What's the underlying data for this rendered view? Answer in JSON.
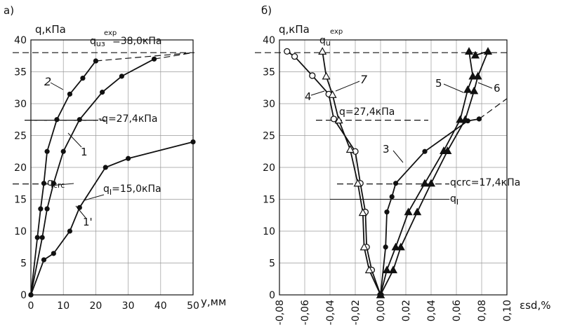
{
  "chart_data": [
    {
      "panel_label": "а)",
      "type": "line",
      "ylabel": "q,кПа",
      "xlabel": "y,мм",
      "xlim": [
        0,
        50
      ],
      "ylim": [
        0,
        40
      ],
      "xticks": [
        "0",
        "10",
        "20",
        "30",
        "40",
        "50"
      ],
      "yticks": [
        "0",
        "5",
        "10",
        "15",
        "20",
        "25",
        "30",
        "35",
        "40"
      ],
      "series": [
        {
          "name": "2",
          "points": [
            [
              0,
              0
            ],
            [
              2,
              9
            ],
            [
              3,
              13.5
            ],
            [
              4,
              17.5
            ],
            [
              5,
              22.5
            ],
            [
              8,
              27.5
            ],
            [
              12,
              31.5
            ],
            [
              16,
              34
            ],
            [
              20,
              36.7
            ]
          ],
          "tail": [
            [
              20,
              36.7
            ],
            [
              50,
              38
            ]
          ]
        },
        {
          "name": "1",
          "points": [
            [
              0,
              0
            ],
            [
              3.5,
              9
            ],
            [
              5,
              13.5
            ],
            [
              7,
              17.5
            ],
            [
              10,
              22.5
            ],
            [
              15,
              27.5
            ],
            [
              22,
              31.8
            ],
            [
              28,
              34.3
            ],
            [
              38,
              37
            ]
          ],
          "tail": [
            [
              38,
              37
            ],
            [
              50,
              38
            ]
          ]
        },
        {
          "name": "1'",
          "points": [
            [
              0,
              0
            ],
            [
              4,
              5.5
            ],
            [
              7,
              6.5
            ],
            [
              12,
              10
            ],
            [
              15,
              13.7
            ],
            [
              23,
              20
            ],
            [
              30,
              21.4
            ],
            [
              50,
              24
            ]
          ]
        }
      ],
      "levels": [
        {
          "value": 38.0,
          "label_main": "q",
          "label_sub": "uз",
          "label_sup": "exp",
          "label_rest": "=38,0кПа"
        },
        {
          "value": 27.4,
          "label_text": "-q=27,4кПа"
        },
        {
          "value": 17.4,
          "label_text": "q",
          "label_sub": "crc"
        },
        {
          "value": 15.0,
          "label_text": "q",
          "label_sub": "I",
          "label_rest": "=15,0кПа"
        }
      ]
    },
    {
      "panel_label": "б)",
      "type": "line",
      "ylabel": "q,кПа",
      "xlabel": "εsd,%",
      "xlim": [
        -0.08,
        0.1
      ],
      "ylim": [
        0,
        40
      ],
      "xticks": [
        "-0,08",
        "-0,06",
        "-0,04",
        "-0,02",
        "0,00",
        "0,02",
        "0,04",
        "0,06",
        "0,08",
        "0,10"
      ],
      "yticks": [
        "0",
        "5",
        "10",
        "15",
        "20",
        "25",
        "30",
        "35",
        "40"
      ],
      "series": [
        {
          "name": "4",
          "marker": "open-circle",
          "points": [
            [
              -0.074,
              38.2
            ],
            [
              -0.068,
              37.4
            ],
            [
              -0.054,
              34.4
            ],
            [
              -0.041,
              31.5
            ],
            [
              -0.037,
              27.6
            ],
            [
              -0.02,
              22.5
            ],
            [
              -0.016,
              17.5
            ],
            [
              -0.012,
              13
            ],
            [
              -0.011,
              7.5
            ],
            [
              -0.007,
              3.9
            ],
            [
              0,
              0
            ]
          ]
        },
        {
          "name": "7",
          "marker": "open-triangle",
          "points": [
            [
              -0.046,
              38.2
            ],
            [
              -0.043,
              34.3
            ],
            [
              -0.038,
              31.4
            ],
            [
              -0.033,
              27.4
            ],
            [
              -0.024,
              22.8
            ],
            [
              -0.018,
              17.5
            ],
            [
              -0.014,
              12.9
            ],
            [
              -0.013,
              7.5
            ],
            [
              -0.009,
              3.9
            ],
            [
              0,
              0
            ]
          ]
        },
        {
          "name": "3",
          "marker": "filled-circle",
          "points": [
            [
              0,
              0
            ],
            [
              0.004,
              7.5
            ],
            [
              0.005,
              13
            ],
            [
              0.009,
              15.4
            ],
            [
              0.012,
              17.5
            ],
            [
              0.035,
              22.5
            ],
            [
              0.069,
              27.3
            ],
            [
              0.078,
              27.6
            ]
          ],
          "tail": [
            [
              0.078,
              27.6
            ],
            [
              0.1,
              30.8
            ]
          ]
        },
        {
          "name": "5",
          "marker": "filled-triangle",
          "points": [
            [
              0,
              0
            ],
            [
              0.005,
              3.9
            ],
            [
              0.012,
              7.5
            ],
            [
              0.022,
              13
            ],
            [
              0.035,
              17.5
            ],
            [
              0.05,
              22.6
            ],
            [
              0.063,
              27.5
            ],
            [
              0.069,
              32.2
            ],
            [
              0.073,
              34.3
            ],
            [
              0.07,
              38.2
            ]
          ]
        },
        {
          "name": "6",
          "marker": "filled-triangle",
          "points": [
            [
              0,
              0
            ],
            [
              0.01,
              3.9
            ],
            [
              0.016,
              7.5
            ],
            [
              0.029,
              13
            ],
            [
              0.04,
              17.5
            ],
            [
              0.053,
              22.6
            ],
            [
              0.067,
              27.5
            ],
            [
              0.074,
              32
            ],
            [
              0.077,
              34.3
            ],
            [
              0.085,
              38.2
            ],
            [
              0.075,
              37.6
            ]
          ]
        }
      ],
      "levels": [
        {
          "value": 38.0,
          "label_main": "q",
          "label_sub": "u",
          "label_sup": "exp"
        },
        {
          "value": 27.4,
          "label_text": "q=27,4кПа"
        },
        {
          "value": 17.4,
          "label_text": "qcrc=17,4кПа"
        },
        {
          "value": 15.0,
          "label_text": "q",
          "label_sub": "I"
        }
      ]
    }
  ]
}
